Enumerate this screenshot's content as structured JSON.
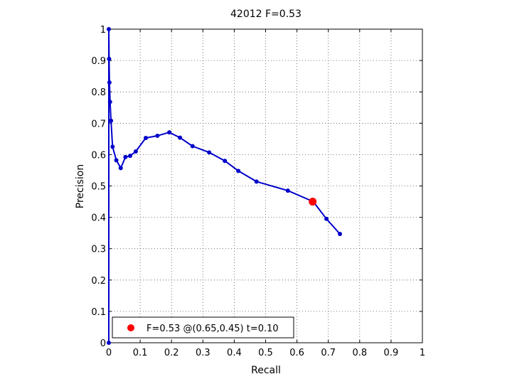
{
  "chart_data": {
    "type": "line",
    "title": "42012 F=0.53",
    "xlabel": "Recall",
    "ylabel": "Precision",
    "xlim": [
      0,
      1
    ],
    "ylim": [
      0,
      1
    ],
    "xticks": [
      "0",
      "0.1",
      "0.2",
      "0.3",
      "0.4",
      "0.5",
      "0.6",
      "0.7",
      "0.8",
      "0.9",
      "1"
    ],
    "yticks": [
      "0",
      "0.1",
      "0.2",
      "0.3",
      "0.4",
      "0.5",
      "0.6",
      "0.7",
      "0.8",
      "0.9",
      "1"
    ],
    "grid": true,
    "series_color": "#0000cc",
    "series": [
      {
        "x": [
          0.0,
          0.0,
          0.001,
          0.002,
          0.004,
          0.007,
          0.012,
          0.024,
          0.038,
          0.053,
          0.068,
          0.086,
          0.118,
          0.155,
          0.193,
          0.227,
          0.267,
          0.32,
          0.37,
          0.413,
          0.471,
          0.571,
          0.652,
          0.694,
          0.737
        ],
        "y": [
          0.0,
          1.0,
          0.905,
          0.83,
          0.768,
          0.708,
          0.625,
          0.582,
          0.557,
          0.592,
          0.596,
          0.61,
          0.653,
          0.66,
          0.671,
          0.654,
          0.627,
          0.607,
          0.58,
          0.548,
          0.514,
          0.485,
          0.45,
          0.395,
          0.347
        ]
      }
    ],
    "highlight": {
      "x": 0.65,
      "y": 0.45,
      "color": "#ff0000"
    },
    "legend": {
      "position": "bottom-left",
      "label": "F=0.53 @(0.65,0.45) t=0.10"
    }
  }
}
